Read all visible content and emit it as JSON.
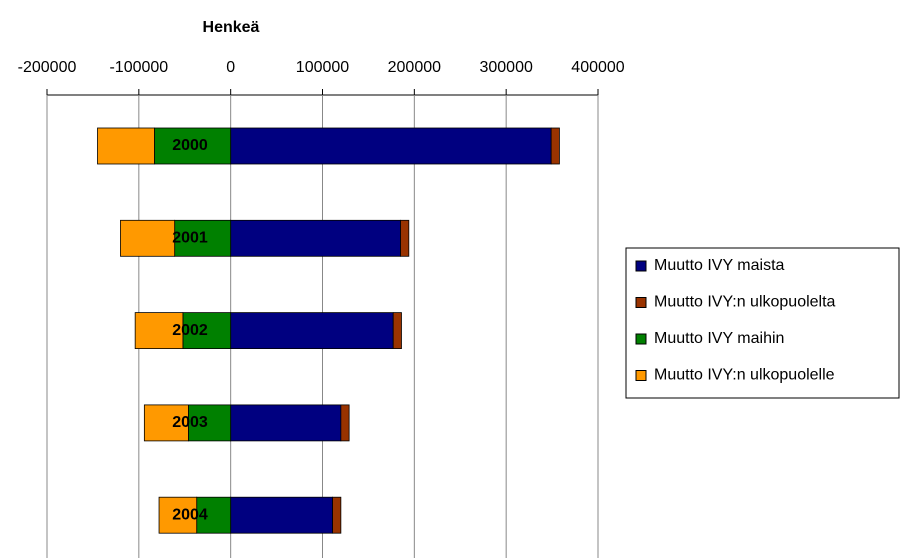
{
  "chart_data": {
    "type": "bar",
    "orientation": "horizontal",
    "stacked": true,
    "title": "Henkeä",
    "categories": [
      "2000",
      "2001",
      "2002",
      "2003",
      "2004"
    ],
    "series": [
      {
        "name": "Muutto IVY maista",
        "color": "#000080",
        "values": [
          349000,
          185000,
          177000,
          120000,
          111000
        ]
      },
      {
        "name": "Muutto IVY:n ulkopuolelta",
        "color": "#993300",
        "values": [
          9000,
          9000,
          9000,
          9000,
          9000
        ]
      },
      {
        "name": "Muutto IVY maihin",
        "color": "#008000",
        "values": [
          -83000,
          -61000,
          -52000,
          -46000,
          -37000
        ]
      },
      {
        "name": "Muutto IVY:n ulkopuolelle",
        "color": "#ff9900",
        "values": [
          -62000,
          -59000,
          -52000,
          -48000,
          -41000
        ]
      }
    ],
    "xlim": [
      -200000,
      400000
    ],
    "xticks": [
      -200000,
      -100000,
      0,
      100000,
      200000,
      300000,
      400000
    ],
    "grid": true,
    "legend": "right"
  }
}
